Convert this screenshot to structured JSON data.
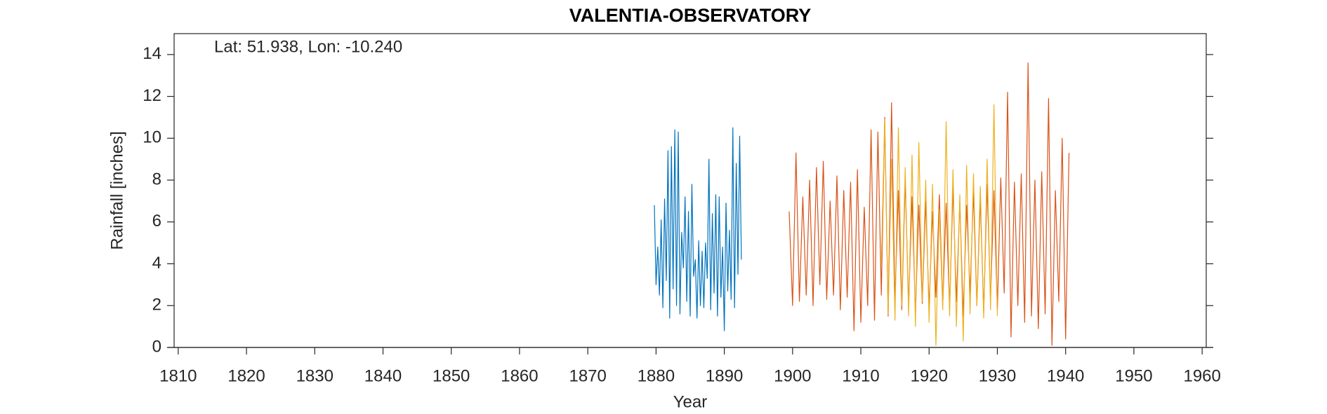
{
  "chart_data": {
    "type": "line",
    "title": "VALENTIA-OBSERVATORY",
    "annotation": "Lat: 51.938, Lon: -10.240",
    "x_label": "Year",
    "y_label": "Rainfall [inches]",
    "xlim": [
      1809.4,
      1960.6
    ],
    "xticks": [
      1810,
      1820,
      1830,
      1840,
      1850,
      1860,
      1870,
      1880,
      1890,
      1900,
      1910,
      1920,
      1930,
      1940,
      1950,
      1960
    ],
    "ylim": [
      0,
      15
    ],
    "yticks": [
      0,
      2,
      4,
      6,
      8,
      10,
      12,
      14
    ],
    "grid": false,
    "series": [
      {
        "color": "#0072BD",
        "x": [
          1879.75,
          1880,
          1880.25,
          1880.5,
          1880.75,
          1881,
          1881.25,
          1881.5,
          1881.75,
          1882,
          1882.25,
          1882.5,
          1882.75,
          1883,
          1883.25,
          1883.5,
          1883.75,
          1884,
          1884.25,
          1884.5,
          1884.75,
          1885,
          1885.25,
          1885.5,
          1885.75,
          1886,
          1886.25,
          1886.5,
          1886.75,
          1887,
          1887.25,
          1887.5,
          1887.75,
          1888,
          1888.25,
          1888.5,
          1888.75,
          1889,
          1889.25,
          1889.5,
          1889.75,
          1890,
          1890.25,
          1890.5,
          1890.75,
          1891,
          1891.25,
          1891.5,
          1891.75,
          1892,
          1892.25,
          1892.5
        ],
        "values": [
          6.8,
          3.0,
          4.8,
          2.5,
          6.1,
          1.9,
          7.1,
          3.2,
          9.4,
          1.4,
          9.6,
          2.8,
          10.4,
          2.0,
          10.3,
          1.6,
          5.5,
          3.8,
          7.2,
          2.2,
          6.5,
          1.5,
          7.8,
          3.4,
          4.2,
          1.4,
          5.1,
          2.0,
          4.6,
          1.9,
          5.0,
          3.3,
          9.0,
          1.8,
          6.4,
          2.6,
          7.3,
          1.5,
          7.2,
          2.4,
          4.8,
          0.8,
          6.9,
          2.7,
          5.6,
          2.3,
          10.5,
          1.9,
          8.8,
          3.5,
          10.1,
          4.2
        ]
      },
      {
        "color": "#D95319",
        "x": [
          1899.5,
          1900,
          1900.5,
          1901,
          1901.5,
          1902,
          1902.5,
          1903,
          1903.5,
          1904,
          1904.5,
          1905,
          1905.5,
          1906,
          1906.5,
          1907,
          1907.5,
          1908,
          1908.5,
          1909,
          1909.5,
          1910,
          1910.5,
          1911,
          1911.5,
          1912,
          1912.5,
          1913,
          1913.5,
          1914,
          1914.5,
          1915,
          1915.5,
          1916,
          1916.5,
          1917,
          1917.5,
          1918,
          1918.5,
          1919,
          1919.5,
          1920,
          1920.5,
          1921,
          1921.5,
          1922,
          1922.5,
          1923,
          1923.5,
          1924,
          1924.5,
          1925,
          1925.5,
          1926,
          1926.5,
          1927,
          1927.5,
          1928,
          1928.5,
          1929,
          1929.5,
          1930,
          1930.5,
          1931,
          1931.5,
          1932,
          1932.5,
          1933,
          1933.5,
          1934,
          1934.5,
          1935,
          1935.5,
          1936,
          1936.5,
          1937,
          1937.5,
          1938,
          1938.5,
          1939,
          1939.5,
          1940,
          1940.5
        ],
        "values": [
          6.5,
          2.0,
          9.3,
          2.2,
          7.2,
          2.5,
          8.0,
          2.0,
          8.6,
          3.0,
          8.9,
          2.3,
          7.0,
          2.5,
          8.2,
          1.8,
          7.5,
          2.4,
          7.9,
          0.8,
          8.5,
          1.2,
          6.7,
          2.0,
          10.4,
          1.3,
          10.3,
          2.5,
          11.0,
          1.5,
          11.7,
          2.2,
          7.5,
          1.8,
          8.0,
          2.0,
          7.2,
          1.6,
          6.8,
          2.1,
          7.0,
          1.9,
          6.5,
          2.4,
          7.3,
          2.0,
          6.9,
          1.8,
          7.6,
          2.2,
          7.0,
          1.5,
          6.8,
          2.6,
          7.4,
          2.0,
          7.1,
          1.7,
          7.8,
          2.3,
          7.5,
          1.8,
          8.1,
          2.6,
          12.2,
          0.5,
          7.9,
          2.0,
          8.3,
          1.2,
          13.6,
          1.5,
          8.0,
          0.9,
          8.4,
          1.6,
          11.9,
          0.1,
          7.5,
          2.2,
          10.0,
          0.4,
          9.3
        ]
      },
      {
        "color": "#EDB120",
        "x": [
          1913,
          1913.5,
          1914,
          1914.5,
          1915,
          1915.5,
          1916,
          1916.5,
          1917,
          1917.5,
          1918,
          1918.5,
          1919,
          1919.5,
          1920,
          1920.5,
          1921,
          1921.5,
          1922,
          1922.5,
          1923,
          1923.5,
          1924,
          1924.5,
          1925,
          1925.5,
          1926,
          1926.5,
          1927,
          1927.5,
          1928,
          1928.5,
          1929,
          1929.5,
          1930
        ],
        "values": [
          4.0,
          10.9,
          1.6,
          9.0,
          1.3,
          10.5,
          2.0,
          8.6,
          1.5,
          9.2,
          1.0,
          9.8,
          2.2,
          8.0,
          1.2,
          7.8,
          0.1,
          6.6,
          1.8,
          10.8,
          1.5,
          8.5,
          1.0,
          7.3,
          0.3,
          8.7,
          1.6,
          8.3,
          2.0,
          7.7,
          1.4,
          9.0,
          1.8,
          11.6,
          1.5
        ]
      }
    ]
  }
}
